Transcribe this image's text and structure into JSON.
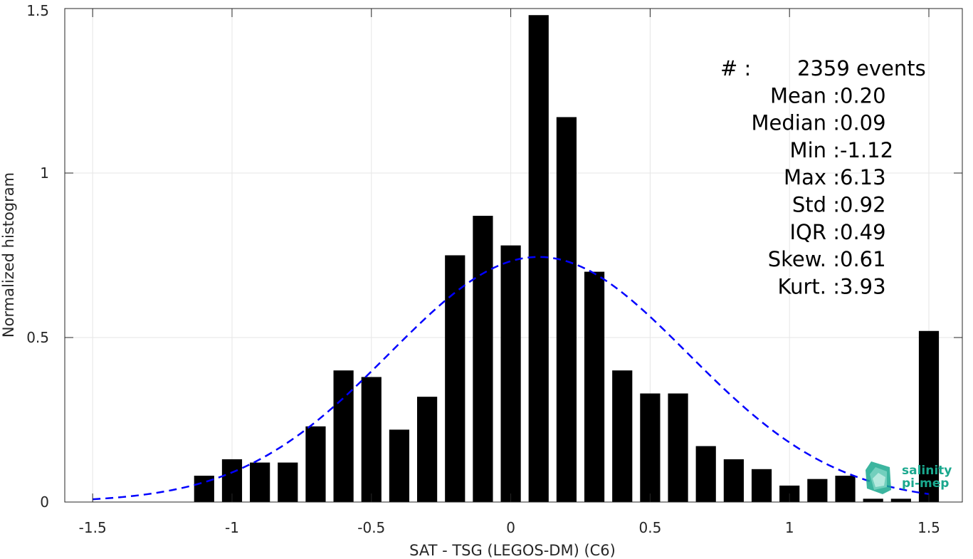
{
  "chart_data": {
    "type": "bar",
    "xlabel": "SAT - TSG (LEGOS-DM) (C6)",
    "ylabel": "Normalized histogram",
    "xlim": [
      -1.5,
      1.5
    ],
    "ylim": [
      0,
      1.5
    ],
    "xticks": [
      "-1.5",
      "-1",
      "-0.5",
      "0",
      "0.5",
      "1",
      "1.5"
    ],
    "xtick_values": [
      -1.5,
      -1,
      -0.5,
      0,
      0.5,
      1,
      1.5
    ],
    "yticks": [
      "0",
      "0.5",
      "1",
      "1.5"
    ],
    "ytick_values": [
      0,
      0.5,
      1,
      1.5
    ],
    "grid": true,
    "bin_width": 0.1,
    "bars": {
      "x": [
        -1.1,
        -1.0,
        -0.9,
        -0.8,
        -0.7,
        -0.6,
        -0.5,
        -0.4,
        -0.3,
        -0.2,
        -0.1,
        0.0,
        0.1,
        0.2,
        0.3,
        0.4,
        0.5,
        0.6,
        0.7,
        0.8,
        0.9,
        1.0,
        1.1,
        1.2,
        1.3,
        1.4,
        1.5
      ],
      "values": [
        0.08,
        0.13,
        0.12,
        0.12,
        0.23,
        0.4,
        0.38,
        0.22,
        0.32,
        0.75,
        0.87,
        0.78,
        1.48,
        1.17,
        0.7,
        0.4,
        0.33,
        0.33,
        0.17,
        0.13,
        0.1,
        0.05,
        0.07,
        0.08,
        0.01,
        0.01,
        0.52
      ],
      "color": "#000000"
    },
    "fit": {
      "kind": "normal",
      "mean": 0.1,
      "std": 0.535,
      "peak": 0.745,
      "x_range": [
        -1.5,
        1.5
      ],
      "color": "#0000ff",
      "style": "dashed"
    },
    "stats": [
      {
        "label": "#  ",
        "value": "2359 events"
      },
      {
        "label": "Mean",
        "value": "0.20"
      },
      {
        "label": "Median",
        "value": "0.09"
      },
      {
        "label": "Min",
        "value": "-1.12"
      },
      {
        "label": "Max",
        "value": "6.13"
      },
      {
        "label": "Std",
        "value": "0.92"
      },
      {
        "label": "IQR",
        "value": "0.49"
      },
      {
        "label": "Skew.",
        "value": "0.61"
      },
      {
        "label": "Kurt.",
        "value": "3.93"
      }
    ]
  },
  "logo": {
    "line1": "salinity",
    "line2": "pi-mep",
    "color": "#1aa88e"
  }
}
